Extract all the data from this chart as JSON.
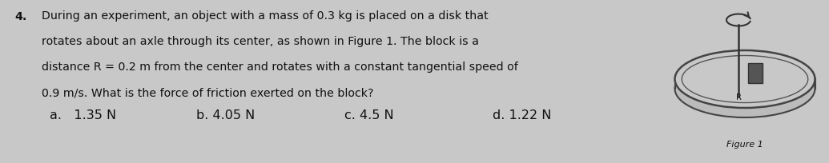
{
  "question_number": "4.",
  "line1": "During an experiment, an object with a mass of 0.3 kg is placed on a disk that",
  "line2": "rotates about an axle through its center, as shown in Figure 1. The block is a",
  "line3": "distance R = 0.2 m from the center and rotates with a constant tangential speed of",
  "line4": "0.9 m/s. What is the force of friction exerted on the block?",
  "answer_a": "a.   1.35 N",
  "answer_b": "b. 4.05 N",
  "answer_c": "c. 4.5 N",
  "answer_d": "d. 1.22 N",
  "figure_label": "Figure 1",
  "bg_color": "#c8c8c8",
  "text_color": "#111111",
  "font_size": 10.2,
  "answer_font_size": 11.5
}
